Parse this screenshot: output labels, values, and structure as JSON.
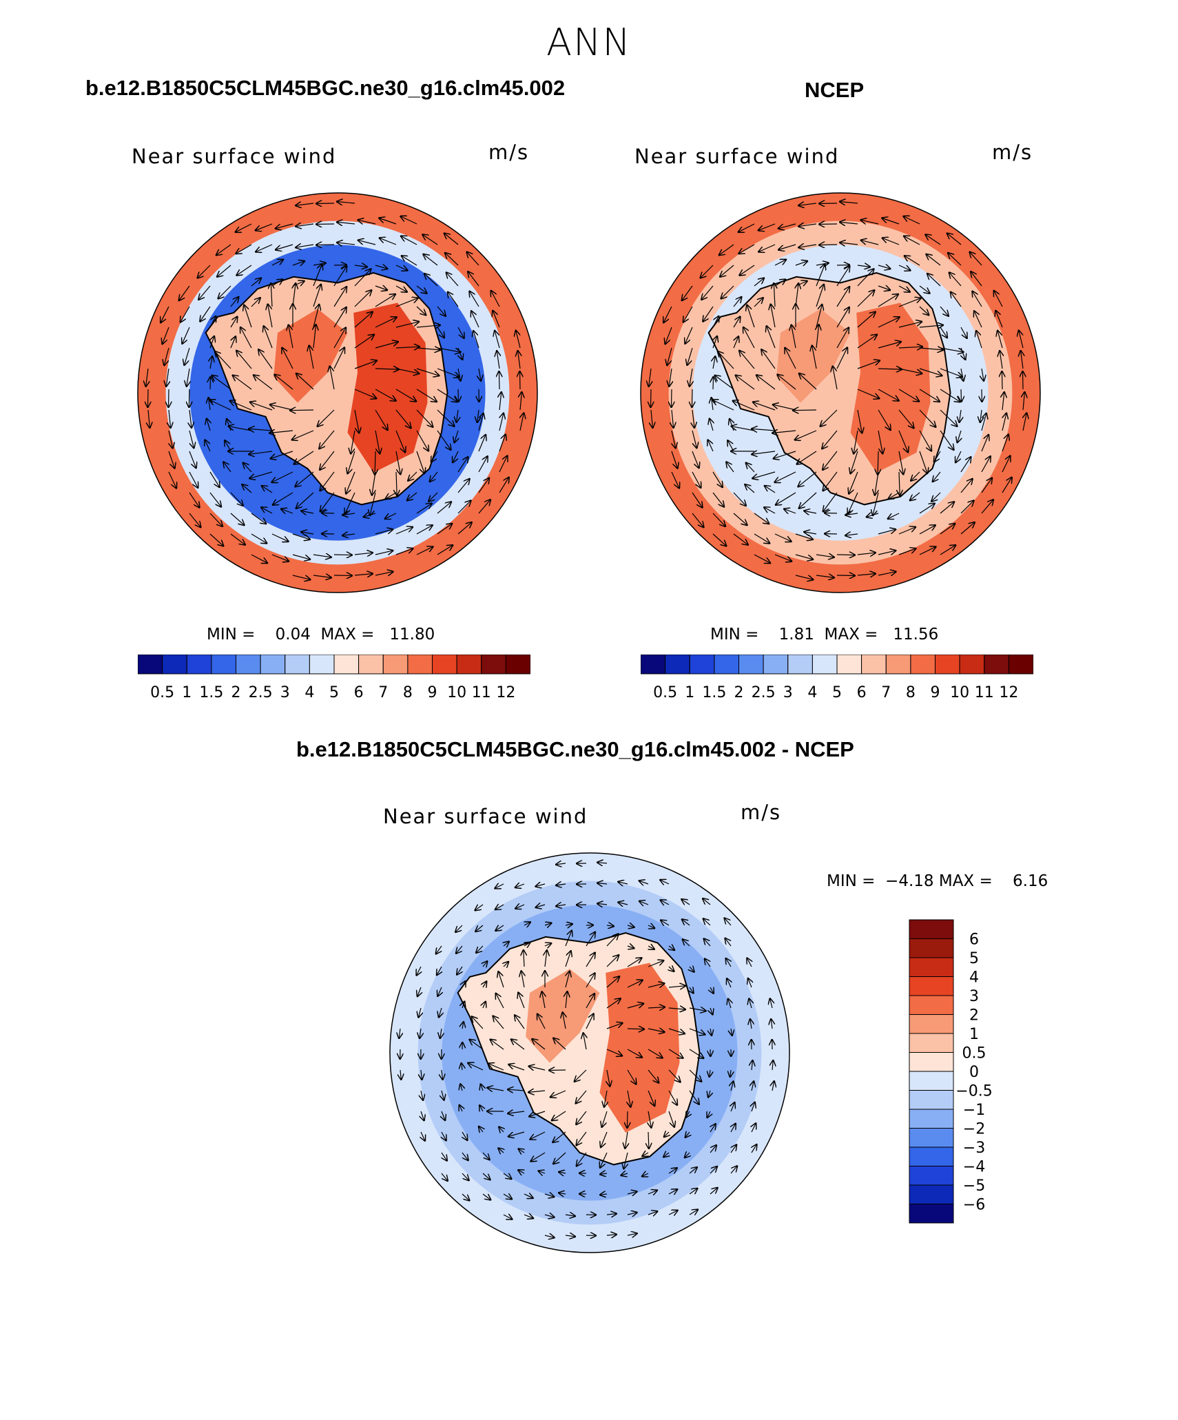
{
  "figure": {
    "title": "ANN",
    "panels": [
      {
        "case_title": "b.e12.B1850C5CLM45BGC.ne30_g16.clm45.002",
        "label": "Near surface wind",
        "units": "m/s",
        "min_label": "MIN =",
        "min_value": "0.04",
        "max_label": "MAX =",
        "max_value": "11.80"
      },
      {
        "case_title": "NCEP",
        "label": "Near surface wind",
        "units": "m/s",
        "min_label": "MIN =",
        "min_value": "1.81",
        "max_label": "MAX =",
        "max_value": "11.56"
      },
      {
        "case_title": "b.e12.B1850C5CLM45BGC.ne30_g16.clm45.002 - NCEP",
        "label": "Near surface wind",
        "units": "m/s",
        "min_label": "MIN =",
        "min_value": "−4.18",
        "max_label": "MAX =",
        "max_value": "6.16"
      }
    ]
  },
  "chart_data": [
    {
      "type": "heatmap",
      "title": "b.e12.B1850C5CLM45BGC.ne30_g16.clm45.002",
      "variable": "Near surface wind",
      "units": "m/s",
      "projection": "south polar stereographic",
      "overlay": "wind vectors",
      "min": 0.04,
      "max": 11.8,
      "colorbar_levels": [
        "0.5",
        "1",
        "1.5",
        "2",
        "2.5",
        "3",
        "4",
        "5",
        "6",
        "7",
        "8",
        "9",
        "10",
        "11",
        "12"
      ],
      "regions": [
        {
          "name": "outer ring (Southern Ocean westerlies)",
          "value": 8
        },
        {
          "name": "coastal ring",
          "value": 1.5
        },
        {
          "name": "East Antarctic interior",
          "value": 9
        },
        {
          "name": "West Antarctic interior",
          "value": 8
        }
      ]
    },
    {
      "type": "heatmap",
      "title": "NCEP",
      "variable": "Near surface wind",
      "units": "m/s",
      "projection": "south polar stereographic",
      "overlay": "wind vectors",
      "min": 1.81,
      "max": 11.56,
      "colorbar_levels": [
        "0.5",
        "1",
        "1.5",
        "2",
        "2.5",
        "3",
        "4",
        "5",
        "6",
        "7",
        "8",
        "9",
        "10",
        "11",
        "12"
      ],
      "regions": [
        {
          "name": "outer ring (Southern Ocean westerlies)",
          "value": 8
        },
        {
          "name": "coastal ring",
          "value": 4
        },
        {
          "name": "East Antarctic interior",
          "value": 8
        },
        {
          "name": "West Antarctic interior",
          "value": 7
        }
      ]
    },
    {
      "type": "heatmap",
      "title": "b.e12.B1850C5CLM45BGC.ne30_g16.clm45.002 - NCEP",
      "variable": "Near surface wind",
      "units": "m/s",
      "projection": "south polar stereographic",
      "overlay": "wind vector differences",
      "min": -4.18,
      "max": 6.16,
      "colorbar_levels": [
        "−6",
        "−5",
        "−4",
        "−3",
        "−2",
        "−1",
        "−0.5",
        "0",
        "0.5",
        "1",
        "2",
        "3",
        "4",
        "5",
        "6"
      ],
      "regions": [
        {
          "name": "outer ring (Southern Ocean)",
          "value": -0.5
        },
        {
          "name": "coastal ring",
          "value": -2
        },
        {
          "name": "East Antarctic interior",
          "value": 2
        },
        {
          "name": "West Antarctic interior",
          "value": 1
        }
      ]
    }
  ],
  "colors": {
    "abs_scale": [
      "#08087a",
      "#0d29b8",
      "#1f43d8",
      "#3366e8",
      "#5a8cf0",
      "#88aff4",
      "#b3cdf7",
      "#d8e6fb",
      "#fde4d6",
      "#fbc2a8",
      "#f79a76",
      "#f26c45",
      "#e64423",
      "#c82c14",
      "#7d0c0c",
      "#6a0000"
    ],
    "diff_scale": [
      "#08087a",
      "#0d29b8",
      "#1f43d8",
      "#3366e8",
      "#5a8cf0",
      "#88aff4",
      "#b3cdf7",
      "#d8e6fb",
      "#fde4d6",
      "#fbc2a8",
      "#f79a76",
      "#f26c45",
      "#e64423",
      "#c82c14",
      "#9a1a0b",
      "#7d0c0c"
    ]
  }
}
